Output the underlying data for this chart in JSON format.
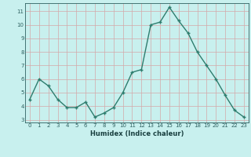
{
  "xlabel": "Humidex (Indice chaleur)",
  "x": [
    0,
    1,
    2,
    3,
    4,
    5,
    6,
    7,
    8,
    9,
    10,
    11,
    12,
    13,
    14,
    15,
    16,
    17,
    18,
    19,
    20,
    21,
    22,
    23
  ],
  "y": [
    4.5,
    6.0,
    5.5,
    4.5,
    3.9,
    3.9,
    4.3,
    3.2,
    3.5,
    3.9,
    5.0,
    6.5,
    6.7,
    10.0,
    10.2,
    11.3,
    10.3,
    9.4,
    8.0,
    7.0,
    6.0,
    4.8,
    3.7,
    3.2
  ],
  "line_color": "#2e7d6e",
  "marker": "+",
  "markersize": 3.5,
  "linewidth": 1.0,
  "ylim": [
    2.8,
    11.6
  ],
  "xlim": [
    -0.5,
    23.5
  ],
  "yticks": [
    3,
    4,
    5,
    6,
    7,
    8,
    9,
    10,
    11
  ],
  "xticks": [
    0,
    1,
    2,
    3,
    4,
    5,
    6,
    7,
    8,
    9,
    10,
    11,
    12,
    13,
    14,
    15,
    16,
    17,
    18,
    19,
    20,
    21,
    22,
    23
  ],
  "bg_color": "#c8f0ee",
  "grid_color": "#d4a8a8",
  "tick_label_color": "#2e6060",
  "axis_label_color": "#1a4040",
  "tick_fontsize": 5.0,
  "label_fontsize": 6.0
}
